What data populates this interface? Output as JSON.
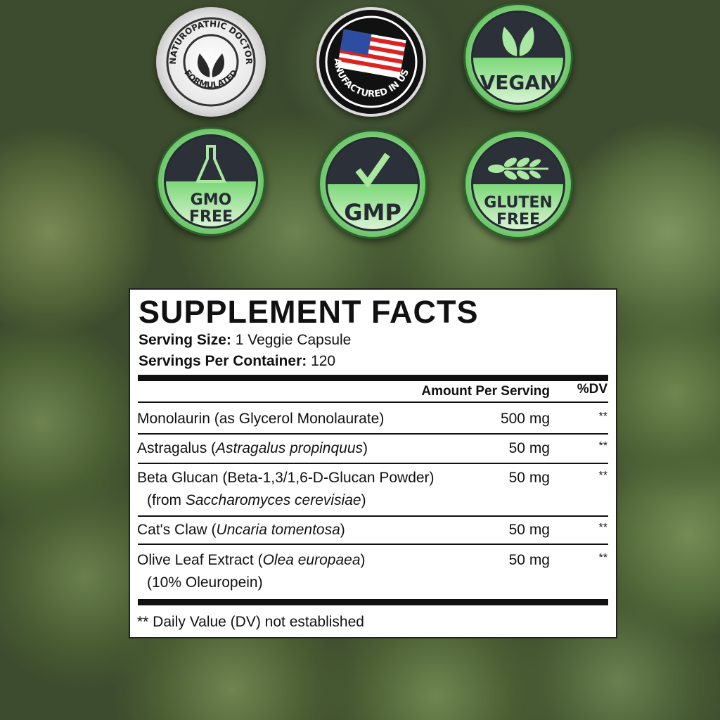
{
  "badges": {
    "naturopathic": {
      "top": "NATUROPATHIC DOCTOR",
      "bottom": "FORMULATED",
      "icon": "leaves-icon"
    },
    "usa": {
      "text": "MANUFACTURED IN USA",
      "icon": "us-flag-icon"
    },
    "vegan": {
      "label": "VEGAN",
      "icon": "leaves-icon"
    },
    "gmo": {
      "line1": "GMO",
      "line2": "FREE",
      "icon": "flask-icon"
    },
    "gmp": {
      "label": "GMP",
      "icon": "checkmark-icon"
    },
    "gluten": {
      "line1": "GLUTEN",
      "line2": "FREE",
      "icon": "wheat-icon"
    }
  },
  "facts": {
    "title": "SUPPLEMENT FACTS",
    "serving_size_label": "Serving Size:",
    "serving_size": "1 Veggie Capsule",
    "servings_label": "Servings Per Container:",
    "servings": "120",
    "header_amount": "Amount Per Serving",
    "header_dv": "%DV",
    "rows": [
      {
        "name": "Monolaurin (as Glycerol Monolaurate)",
        "amount": "500 mg",
        "dv": "**"
      },
      {
        "name": "Astragalus (",
        "latin": "Astragalus propinquus",
        "close": ")",
        "amount": "50 mg",
        "dv": "**"
      },
      {
        "name": "Beta Glucan (Beta-1,3/1,6-D-Glucan Powder)",
        "sub_pre": "(from ",
        "sub_latin": "Saccharomyces cerevisiae",
        "sub_close": ")",
        "amount": "50 mg",
        "dv": "**"
      },
      {
        "name": "Cat's Claw (",
        "latin": "Uncaria tomentosa",
        "close": ")",
        "amount": "50 mg",
        "dv": "**"
      },
      {
        "name": "Olive Leaf Extract (",
        "latin": "Olea europaea",
        "close": ")",
        "sub": "(10% Oleuropein)",
        "amount": "50 mg",
        "dv": "**"
      }
    ],
    "footnote": "** Daily Value (DV) not established"
  }
}
